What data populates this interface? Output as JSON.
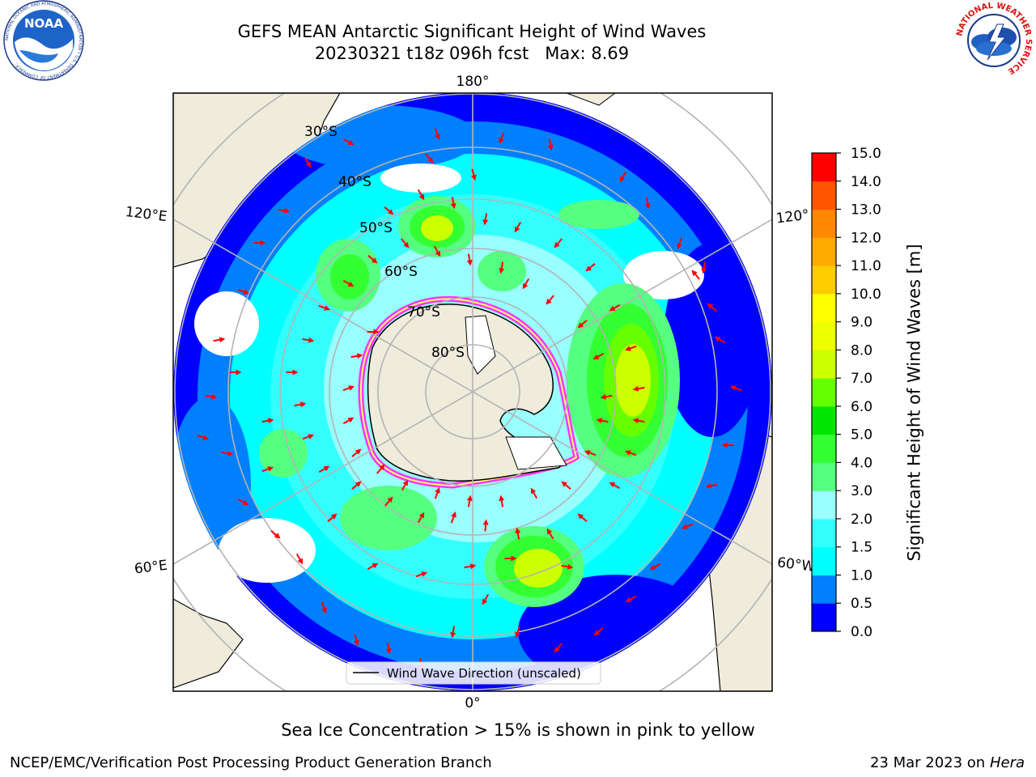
{
  "header": {
    "title_line1": "GEFS MEAN Antarctic Significant Height of Wind Waves",
    "title_line2": "20230321 t18z 096h fcst   Max: 8.69"
  },
  "logos": {
    "noaa_text": "NOAA",
    "noaa_ring_text": "NATIONAL OCEANIC AND ATMOSPHERIC ADMINISTRATION • U.S. DEPARTMENT OF COMMERCE",
    "nws_ring_text": "NATIONAL WEATHER SERVICE"
  },
  "map": {
    "projection": "South polar stereographic",
    "longitude_labels": {
      "top": "180°",
      "bottom": "0°",
      "upper_left": "120°E",
      "upper_right": "120°",
      "lower_left": "60°E",
      "lower_right": "60°W"
    },
    "latitude_labels": [
      "30°S",
      "40°S",
      "50°S",
      "60°S",
      "70°S",
      "80°S"
    ],
    "legend_label": "Wind Wave Direction (unscaled)",
    "colors": {
      "land": "#efecdc",
      "ice_edge_pink": "#ff33ff",
      "ice_edge_yellow": "#ffff66",
      "arrow": "#ff0000",
      "graticule": "#b4b4b4"
    }
  },
  "colorbar": {
    "label": "Significant Height of Wind Waves [m]",
    "ticks": [
      "0.0",
      "0.5",
      "1.0",
      "1.5",
      "2.0",
      "3.0",
      "4.0",
      "5.0",
      "6.0",
      "7.0",
      "8.0",
      "9.0",
      "10.0",
      "11.0",
      "12.0",
      "13.0",
      "14.0",
      "15.0"
    ],
    "colors": [
      "#0000ff",
      "#0080ff",
      "#00ffff",
      "#33ffff",
      "#99ffff",
      "#55ff80",
      "#33ff33",
      "#00e600",
      "#66ff00",
      "#ccff00",
      "#eeff00",
      "#ffff00",
      "#ffcc00",
      "#ffaa00",
      "#ff8800",
      "#ff5500",
      "#ff0000"
    ]
  },
  "footer": {
    "note": "Sea Ice Concentration > 15% is shown in pink to yellow",
    "credit_left": "NCEP/EMC/Verification Post Processing Product Generation Branch",
    "date": "23 Mar 2023",
    "on_word": "on",
    "host": "Hera"
  }
}
